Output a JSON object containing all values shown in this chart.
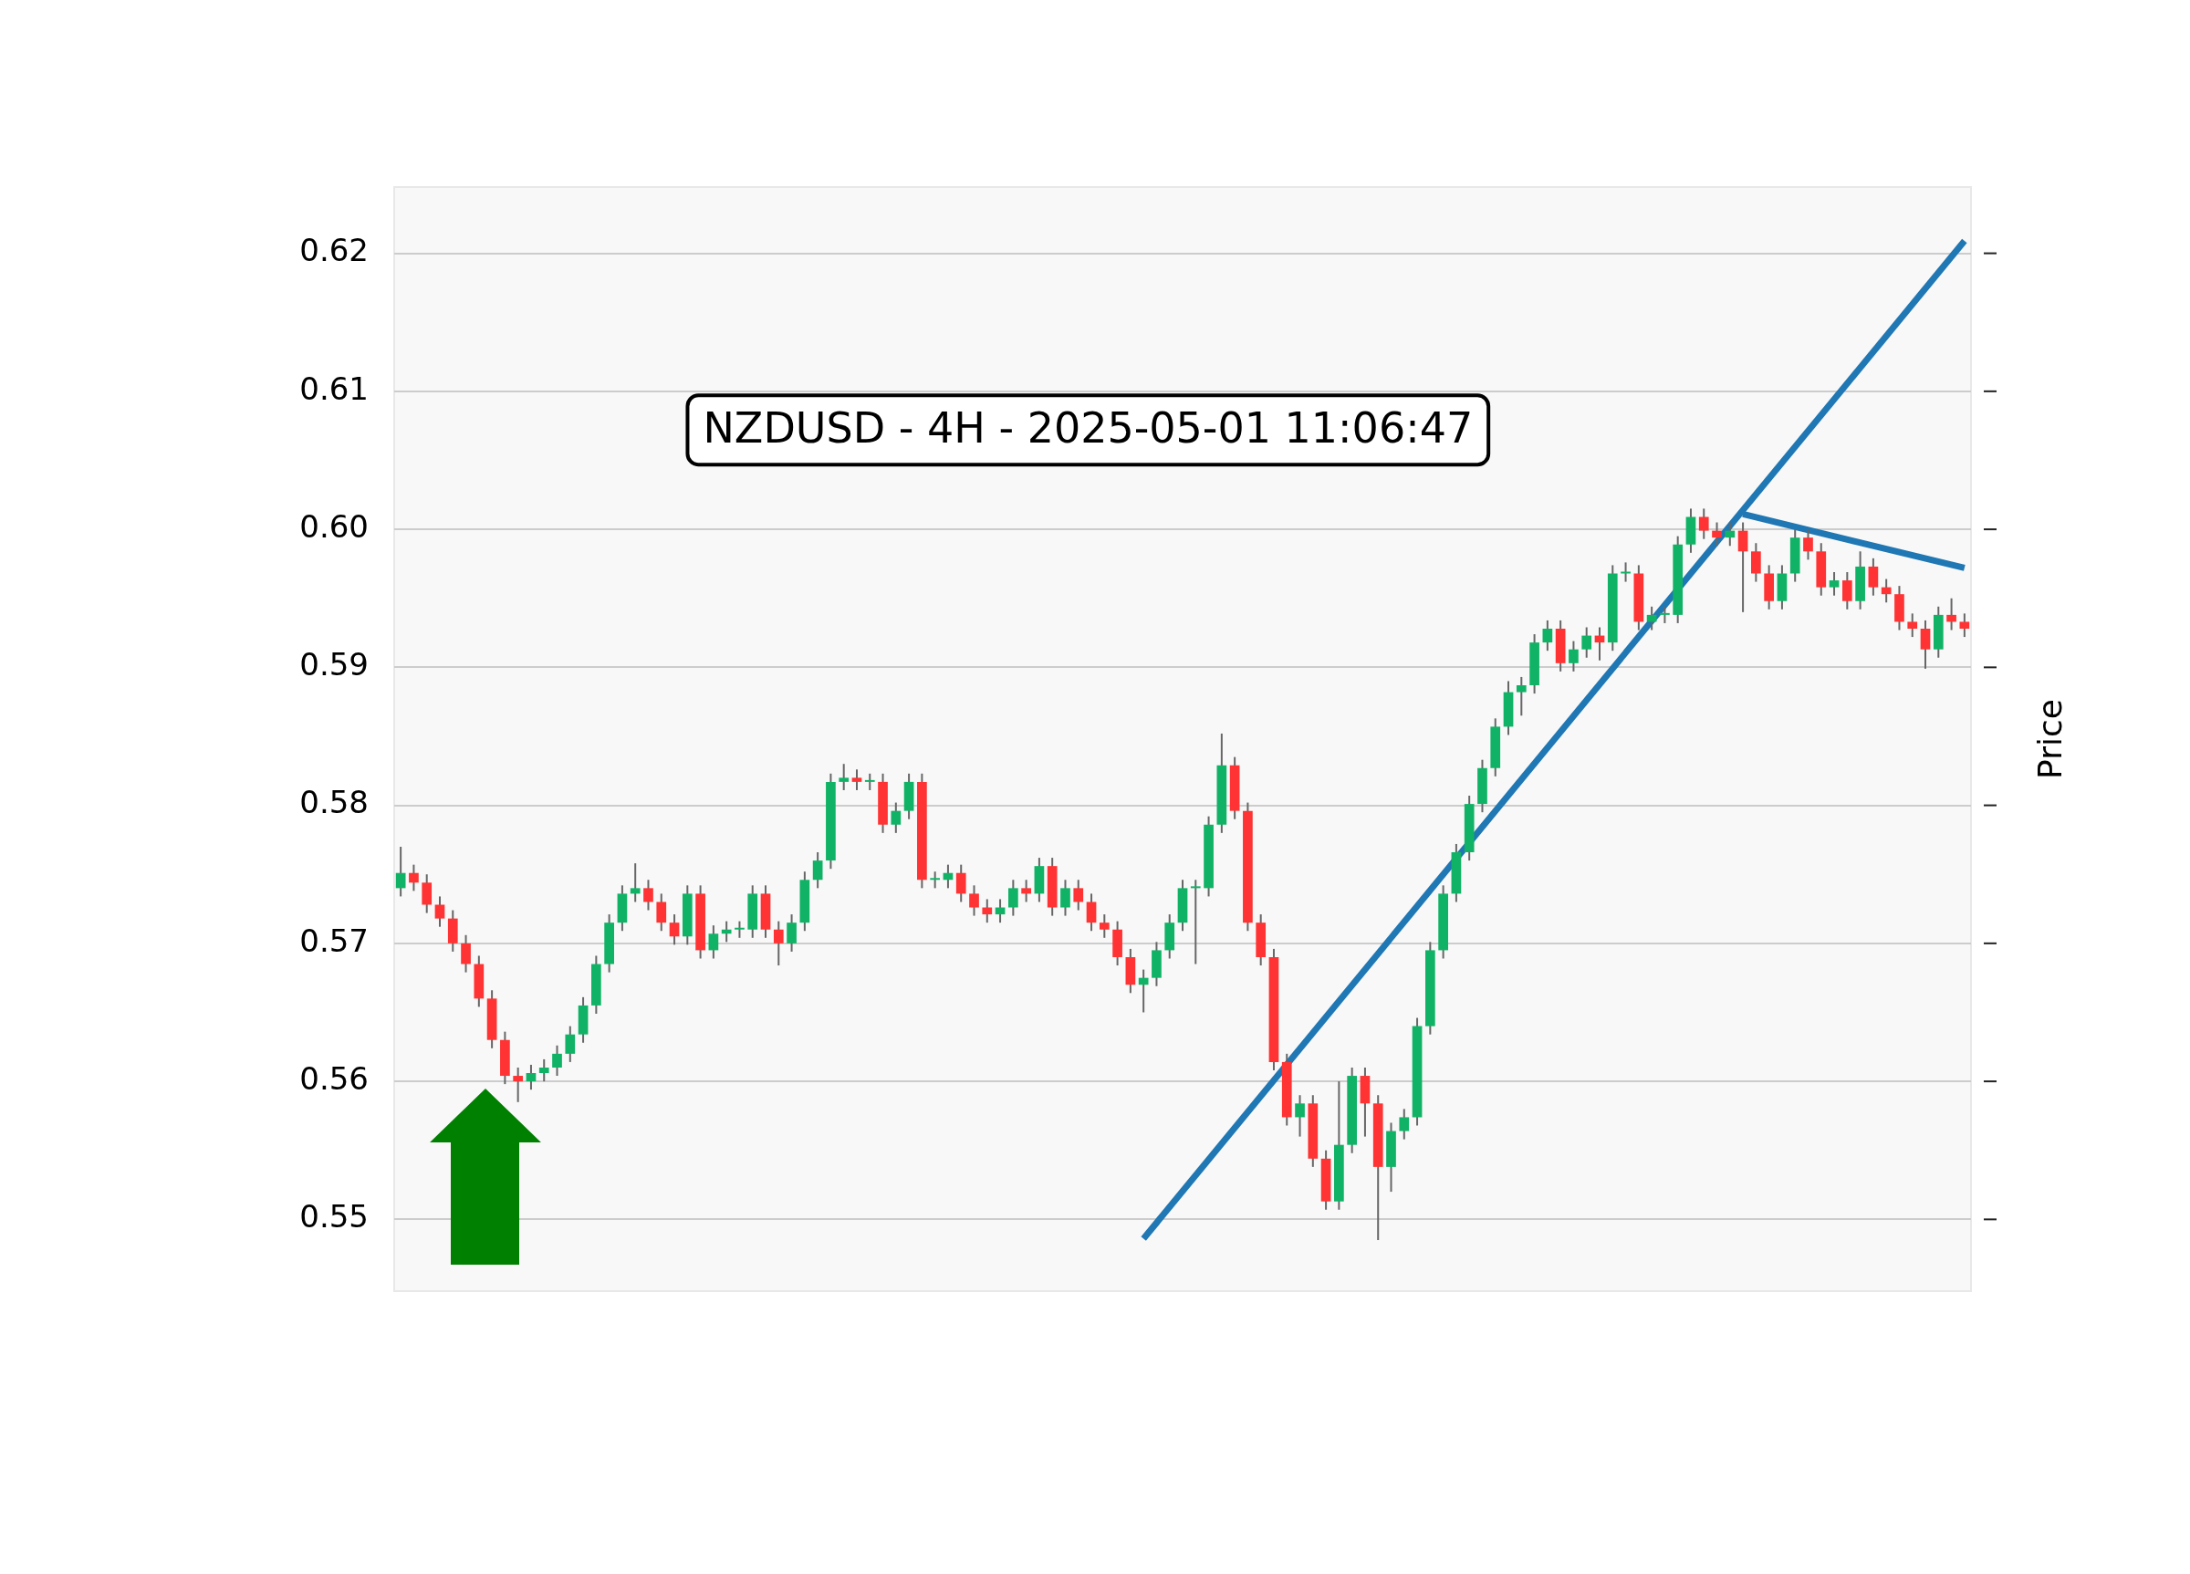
{
  "chart_data": {
    "type": "candlestick",
    "ylabel": "Price",
    "annotations": [
      "NZDUSD - 4H - 2025-05-01 11:06:47"
    ],
    "categories": [
      null,
      null,
      null,
      null,
      null,
      null,
      null,
      null,
      null,
      null,
      null,
      null,
      null,
      null,
      null,
      null,
      null,
      null,
      null,
      null,
      null,
      null,
      null,
      null,
      null,
      null,
      null,
      null,
      null,
      null,
      null,
      null,
      null,
      null,
      null,
      null,
      null,
      null,
      null,
      null,
      null,
      null,
      null,
      null,
      null,
      null,
      null,
      null,
      null,
      null,
      null,
      null,
      null,
      null,
      null,
      null,
      null,
      null,
      null,
      null,
      null,
      null,
      null,
      null,
      null,
      null,
      null,
      null,
      null,
      null,
      null,
      null,
      null,
      null,
      null,
      null,
      null,
      null,
      null,
      null,
      null,
      null,
      null,
      null,
      null,
      null,
      null,
      null,
      null,
      null,
      null,
      null,
      null,
      null,
      null,
      null,
      null,
      null,
      null,
      null,
      null,
      null,
      null,
      null,
      null,
      null,
      null,
      null,
      null,
      null,
      null,
      null,
      null,
      null,
      null,
      null,
      null,
      null,
      null,
      null,
      null
    ],
    "ohlc": [
      [
        0.574,
        0.577,
        0.5734,
        0.5751
      ],
      [
        0.5751,
        0.5757,
        0.5738,
        0.5744
      ],
      [
        0.5744,
        0.575,
        0.5722,
        0.5728
      ],
      [
        0.5728,
        0.5734,
        0.5712,
        0.5718
      ],
      [
        0.5718,
        0.5724,
        0.5694,
        0.57
      ],
      [
        0.57,
        0.5706,
        0.5679,
        0.5685
      ],
      [
        0.5685,
        0.5691,
        0.5654,
        0.566
      ],
      [
        0.566,
        0.5666,
        0.5624,
        0.563
      ],
      [
        0.563,
        0.5636,
        0.5598,
        0.5604
      ],
      [
        0.5604,
        0.561,
        0.5585,
        0.56
      ],
      [
        0.56,
        0.5612,
        0.5594,
        0.5606
      ],
      [
        0.5606,
        0.5616,
        0.56,
        0.561
      ],
      [
        0.561,
        0.5626,
        0.5604,
        0.562
      ],
      [
        0.562,
        0.564,
        0.5614,
        0.5634
      ],
      [
        0.5634,
        0.5661,
        0.5628,
        0.5655
      ],
      [
        0.5655,
        0.5691,
        0.5649,
        0.5685
      ],
      [
        0.5685,
        0.5721,
        0.5679,
        0.5715
      ],
      [
        0.5715,
        0.5742,
        0.5709,
        0.5736
      ],
      [
        0.5736,
        0.5758,
        0.573,
        0.574
      ],
      [
        0.574,
        0.5746,
        0.5724,
        0.573
      ],
      [
        0.573,
        0.5736,
        0.5709,
        0.5715
      ],
      [
        0.5715,
        0.5721,
        0.5699,
        0.5705
      ],
      [
        0.5705,
        0.5742,
        0.5699,
        0.5736
      ],
      [
        0.5736,
        0.5742,
        0.5689,
        0.5695
      ],
      [
        0.5695,
        0.5713,
        0.5689,
        0.5707
      ],
      [
        0.5707,
        0.5716,
        0.5701,
        0.571
      ],
      [
        0.571,
        0.5716,
        0.5704,
        0.571
      ],
      [
        0.571,
        0.5742,
        0.5704,
        0.5736
      ],
      [
        0.5736,
        0.5742,
        0.5704,
        0.571
      ],
      [
        0.571,
        0.5716,
        0.5684,
        0.57
      ],
      [
        0.57,
        0.5721,
        0.5694,
        0.5715
      ],
      [
        0.5715,
        0.5752,
        0.5709,
        0.5746
      ],
      [
        0.5746,
        0.5766,
        0.574,
        0.576
      ],
      [
        0.576,
        0.5823,
        0.5754,
        0.5817
      ],
      [
        0.5817,
        0.583,
        0.5811,
        0.582
      ],
      [
        0.582,
        0.5826,
        0.5811,
        0.5817
      ],
      [
        0.5817,
        0.5823,
        0.5811,
        0.5817
      ],
      [
        0.5817,
        0.5823,
        0.578,
        0.5786
      ],
      [
        0.5786,
        0.5802,
        0.578,
        0.5796
      ],
      [
        0.5796,
        0.5823,
        0.579,
        0.5817
      ],
      [
        0.5817,
        0.5823,
        0.574,
        0.5746
      ],
      [
        0.5746,
        0.5752,
        0.574,
        0.5746
      ],
      [
        0.5746,
        0.5757,
        0.574,
        0.5751
      ],
      [
        0.5751,
        0.5757,
        0.573,
        0.5736
      ],
      [
        0.5736,
        0.5742,
        0.572,
        0.5726
      ],
      [
        0.5726,
        0.5732,
        0.5715,
        0.5721
      ],
      [
        0.5721,
        0.5732,
        0.5715,
        0.5726
      ],
      [
        0.5726,
        0.5746,
        0.572,
        0.574
      ],
      [
        0.574,
        0.5746,
        0.573,
        0.5736
      ],
      [
        0.5736,
        0.5762,
        0.573,
        0.5756
      ],
      [
        0.5756,
        0.5762,
        0.572,
        0.5726
      ],
      [
        0.5726,
        0.5746,
        0.572,
        0.574
      ],
      [
        0.574,
        0.5746,
        0.5724,
        0.573
      ],
      [
        0.573,
        0.5736,
        0.5709,
        0.5715
      ],
      [
        0.5715,
        0.5721,
        0.5704,
        0.571
      ],
      [
        0.571,
        0.5716,
        0.5684,
        0.569
      ],
      [
        0.569,
        0.5696,
        0.5664,
        0.567
      ],
      [
        0.567,
        0.5681,
        0.565,
        0.5675
      ],
      [
        0.5675,
        0.5701,
        0.5669,
        0.5695
      ],
      [
        0.5695,
        0.5721,
        0.5689,
        0.5715
      ],
      [
        0.5715,
        0.5746,
        0.5709,
        0.574
      ],
      [
        0.574,
        0.5746,
        0.5685,
        0.574
      ],
      [
        0.574,
        0.5792,
        0.5734,
        0.5786
      ],
      [
        0.5786,
        0.5852,
        0.578,
        0.5829
      ],
      [
        0.5829,
        0.5835,
        0.579,
        0.5796
      ],
      [
        0.5796,
        0.5802,
        0.5709,
        0.5715
      ],
      [
        0.5715,
        0.5721,
        0.5684,
        0.569
      ],
      [
        0.569,
        0.5696,
        0.5608,
        0.5614
      ],
      [
        0.5614,
        0.562,
        0.5568,
        0.5574
      ],
      [
        0.5574,
        0.559,
        0.556,
        0.5584
      ],
      [
        0.5584,
        0.559,
        0.5538,
        0.5544
      ],
      [
        0.5544,
        0.555,
        0.5507,
        0.5513
      ],
      [
        0.5513,
        0.56,
        0.5507,
        0.5554
      ],
      [
        0.5554,
        0.561,
        0.5548,
        0.5604
      ],
      [
        0.5604,
        0.561,
        0.556,
        0.5584
      ],
      [
        0.5584,
        0.559,
        0.5485,
        0.5538
      ],
      [
        0.5538,
        0.557,
        0.552,
        0.5564
      ],
      [
        0.5564,
        0.558,
        0.5558,
        0.5574
      ],
      [
        0.5574,
        0.5646,
        0.5568,
        0.564
      ],
      [
        0.564,
        0.5701,
        0.5634,
        0.5695
      ],
      [
        0.5695,
        0.5742,
        0.5689,
        0.5736
      ],
      [
        0.5736,
        0.5772,
        0.573,
        0.5766
      ],
      [
        0.5766,
        0.5807,
        0.576,
        0.5801
      ],
      [
        0.5801,
        0.5833,
        0.5795,
        0.5827
      ],
      [
        0.5827,
        0.5863,
        0.5821,
        0.5857
      ],
      [
        0.5857,
        0.589,
        0.5851,
        0.5882
      ],
      [
        0.5882,
        0.5893,
        0.5865,
        0.5887
      ],
      [
        0.5887,
        0.5924,
        0.5881,
        0.5918
      ],
      [
        0.5918,
        0.5934,
        0.5912,
        0.5928
      ],
      [
        0.5928,
        0.5934,
        0.5897,
        0.5903
      ],
      [
        0.5903,
        0.5919,
        0.5897,
        0.5913
      ],
      [
        0.5913,
        0.5929,
        0.5907,
        0.5923
      ],
      [
        0.5923,
        0.5929,
        0.5905,
        0.5918
      ],
      [
        0.5918,
        0.5974,
        0.5912,
        0.5968
      ],
      [
        0.5968,
        0.5976,
        0.5962,
        0.5968
      ],
      [
        0.5968,
        0.5974,
        0.5927,
        0.5933
      ],
      [
        0.5933,
        0.5944,
        0.5927,
        0.5938
      ],
      [
        0.5938,
        0.5944,
        0.5932,
        0.5938
      ],
      [
        0.5938,
        0.5995,
        0.5932,
        0.5989
      ],
      [
        0.5989,
        0.6015,
        0.5983,
        0.6009
      ],
      [
        0.6009,
        0.6015,
        0.5993,
        0.5999
      ],
      [
        0.5999,
        0.6005,
        0.5988,
        0.5994
      ],
      [
        0.5994,
        0.6005,
        0.5988,
        0.5999
      ],
      [
        0.5999,
        0.6005,
        0.594,
        0.5984
      ],
      [
        0.5984,
        0.599,
        0.5962,
        0.5968
      ],
      [
        0.5968,
        0.5974,
        0.5942,
        0.5948
      ],
      [
        0.5948,
        0.5974,
        0.5942,
        0.5968
      ],
      [
        0.5968,
        0.6,
        0.5962,
        0.5994
      ],
      [
        0.5994,
        0.6,
        0.5978,
        0.5984
      ],
      [
        0.5984,
        0.599,
        0.5952,
        0.5958
      ],
      [
        0.5958,
        0.5969,
        0.5952,
        0.5963
      ],
      [
        0.5963,
        0.5969,
        0.5942,
        0.5948
      ],
      [
        0.5948,
        0.5984,
        0.5942,
        0.5973
      ],
      [
        0.5973,
        0.5979,
        0.5952,
        0.5958
      ],
      [
        0.5958,
        0.5964,
        0.5947,
        0.5953
      ],
      [
        0.5953,
        0.5959,
        0.5927,
        0.5933
      ],
      [
        0.5933,
        0.5939,
        0.5922,
        0.5928
      ],
      [
        0.5928,
        0.5934,
        0.5899,
        0.5913
      ],
      [
        0.5913,
        0.5944,
        0.5907,
        0.5938
      ],
      [
        0.5938,
        0.595,
        0.5927,
        0.5933
      ],
      [
        0.5933,
        0.5939,
        0.5922,
        0.5928
      ]
    ],
    "series": [
      {
        "type": "line",
        "color": "#1f77b4",
        "values": [
          null,
          null,
          null,
          null,
          null,
          null,
          null,
          null,
          null,
          null,
          null,
          null,
          null,
          null,
          null,
          null,
          null,
          null,
          null,
          null,
          null,
          null,
          null,
          null,
          null,
          null,
          null,
          null,
          null,
          null,
          null,
          null,
          null,
          null,
          null,
          null,
          null,
          null,
          null,
          null,
          null,
          null,
          null,
          null,
          null,
          null,
          null,
          null,
          null,
          null,
          null,
          null,
          null,
          null,
          null,
          null,
          null,
          0.5486,
          null,
          null,
          null,
          null,
          null,
          null,
          null,
          null,
          null,
          null,
          null,
          null,
          null,
          null,
          null,
          null,
          null,
          null,
          null,
          null,
          null,
          null,
          null,
          null,
          null,
          null,
          null,
          null,
          null,
          null,
          null,
          null,
          null,
          null,
          null,
          null,
          null,
          null,
          null,
          null,
          null,
          null,
          null,
          null,
          null,
          null,
          null,
          null,
          null,
          null,
          null,
          null,
          null,
          null,
          null,
          null,
          null,
          null,
          null,
          null,
          null,
          null,
          0.6209
        ]
      },
      {
        "type": "line",
        "color": "#1f77b4",
        "values": [
          null,
          null,
          null,
          null,
          null,
          null,
          null,
          null,
          null,
          null,
          null,
          null,
          null,
          null,
          null,
          null,
          null,
          null,
          null,
          null,
          null,
          null,
          null,
          null,
          null,
          null,
          null,
          null,
          null,
          null,
          null,
          null,
          null,
          null,
          null,
          null,
          null,
          null,
          null,
          null,
          null,
          null,
          null,
          null,
          null,
          null,
          null,
          null,
          null,
          null,
          null,
          null,
          null,
          null,
          null,
          null,
          null,
          null,
          null,
          null,
          null,
          null,
          null,
          null,
          null,
          null,
          null,
          null,
          null,
          null,
          null,
          null,
          null,
          null,
          null,
          null,
          null,
          null,
          null,
          null,
          null,
          null,
          null,
          null,
          null,
          null,
          null,
          null,
          null,
          null,
          null,
          null,
          null,
          null,
          null,
          null,
          null,
          null,
          null,
          null,
          null,
          null,
          null,
          0.6011,
          null,
          null,
          null,
          null,
          null,
          null,
          null,
          null,
          null,
          null,
          null,
          null,
          null,
          null,
          null,
          null,
          0.5972
        ]
      }
    ],
    "ylim": [
      0.5448,
      0.6248
    ],
    "yticks": [
      {
        "value": 0.55,
        "label": "0.55"
      },
      {
        "value": 0.56,
        "label": "0.56"
      },
      {
        "value": 0.57,
        "label": "0.57"
      },
      {
        "value": 0.58,
        "label": "0.58"
      },
      {
        "value": 0.59,
        "label": "0.59"
      },
      {
        "value": 0.6,
        "label": "0.60"
      },
      {
        "value": 0.61,
        "label": "0.61"
      },
      {
        "value": 0.62,
        "label": "0.62"
      }
    ],
    "grid": "y",
    "legend": false,
    "tick_labels": "y"
  }
}
